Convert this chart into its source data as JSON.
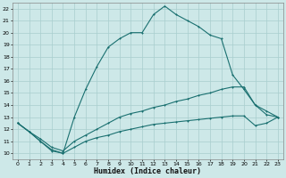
{
  "xlabel": "Humidex (Indice chaleur)",
  "background_color": "#cde8e8",
  "line_color": "#1a7070",
  "grid_color": "#a8cece",
  "xlim": [
    -0.5,
    23.5
  ],
  "ylim": [
    9.5,
    22.5
  ],
  "xticks": [
    0,
    1,
    2,
    3,
    4,
    5,
    6,
    7,
    8,
    9,
    10,
    11,
    12,
    13,
    14,
    15,
    16,
    17,
    18,
    19,
    20,
    21,
    22,
    23
  ],
  "yticks": [
    10,
    11,
    12,
    13,
    14,
    15,
    16,
    17,
    18,
    19,
    20,
    21,
    22
  ],
  "line1_x": [
    0,
    1,
    2,
    3,
    4,
    5,
    6,
    7,
    8,
    9,
    10,
    11,
    12,
    13,
    14,
    15,
    16,
    17,
    18,
    19,
    20,
    21,
    22,
    23
  ],
  "line1_y": [
    12.5,
    11.8,
    11.0,
    10.2,
    10.0,
    13.0,
    15.3,
    17.2,
    18.8,
    19.5,
    20.0,
    20.0,
    21.5,
    22.2,
    21.5,
    21.0,
    20.5,
    19.8,
    19.5,
    16.5,
    15.3,
    14.0,
    13.2,
    13.0
  ],
  "line2_x": [
    0,
    1,
    2,
    3,
    4,
    5,
    6,
    7,
    8,
    9,
    10,
    11,
    12,
    13,
    14,
    15,
    16,
    17,
    18,
    19,
    20,
    21,
    22,
    23
  ],
  "line2_y": [
    12.5,
    11.8,
    11.2,
    10.5,
    10.2,
    11.0,
    11.5,
    12.0,
    12.5,
    13.0,
    13.3,
    13.5,
    13.8,
    14.0,
    14.3,
    14.5,
    14.8,
    15.0,
    15.3,
    15.5,
    15.5,
    14.0,
    13.5,
    13.0
  ],
  "line3_x": [
    0,
    1,
    2,
    3,
    4,
    5,
    6,
    7,
    8,
    9,
    10,
    11,
    12,
    13,
    14,
    15,
    16,
    17,
    18,
    19,
    20,
    21,
    22,
    23
  ],
  "line3_y": [
    12.5,
    11.8,
    11.0,
    10.3,
    10.0,
    10.5,
    11.0,
    11.3,
    11.5,
    11.8,
    12.0,
    12.2,
    12.4,
    12.5,
    12.6,
    12.7,
    12.8,
    12.9,
    13.0,
    13.1,
    13.1,
    12.3,
    12.5,
    13.0
  ]
}
